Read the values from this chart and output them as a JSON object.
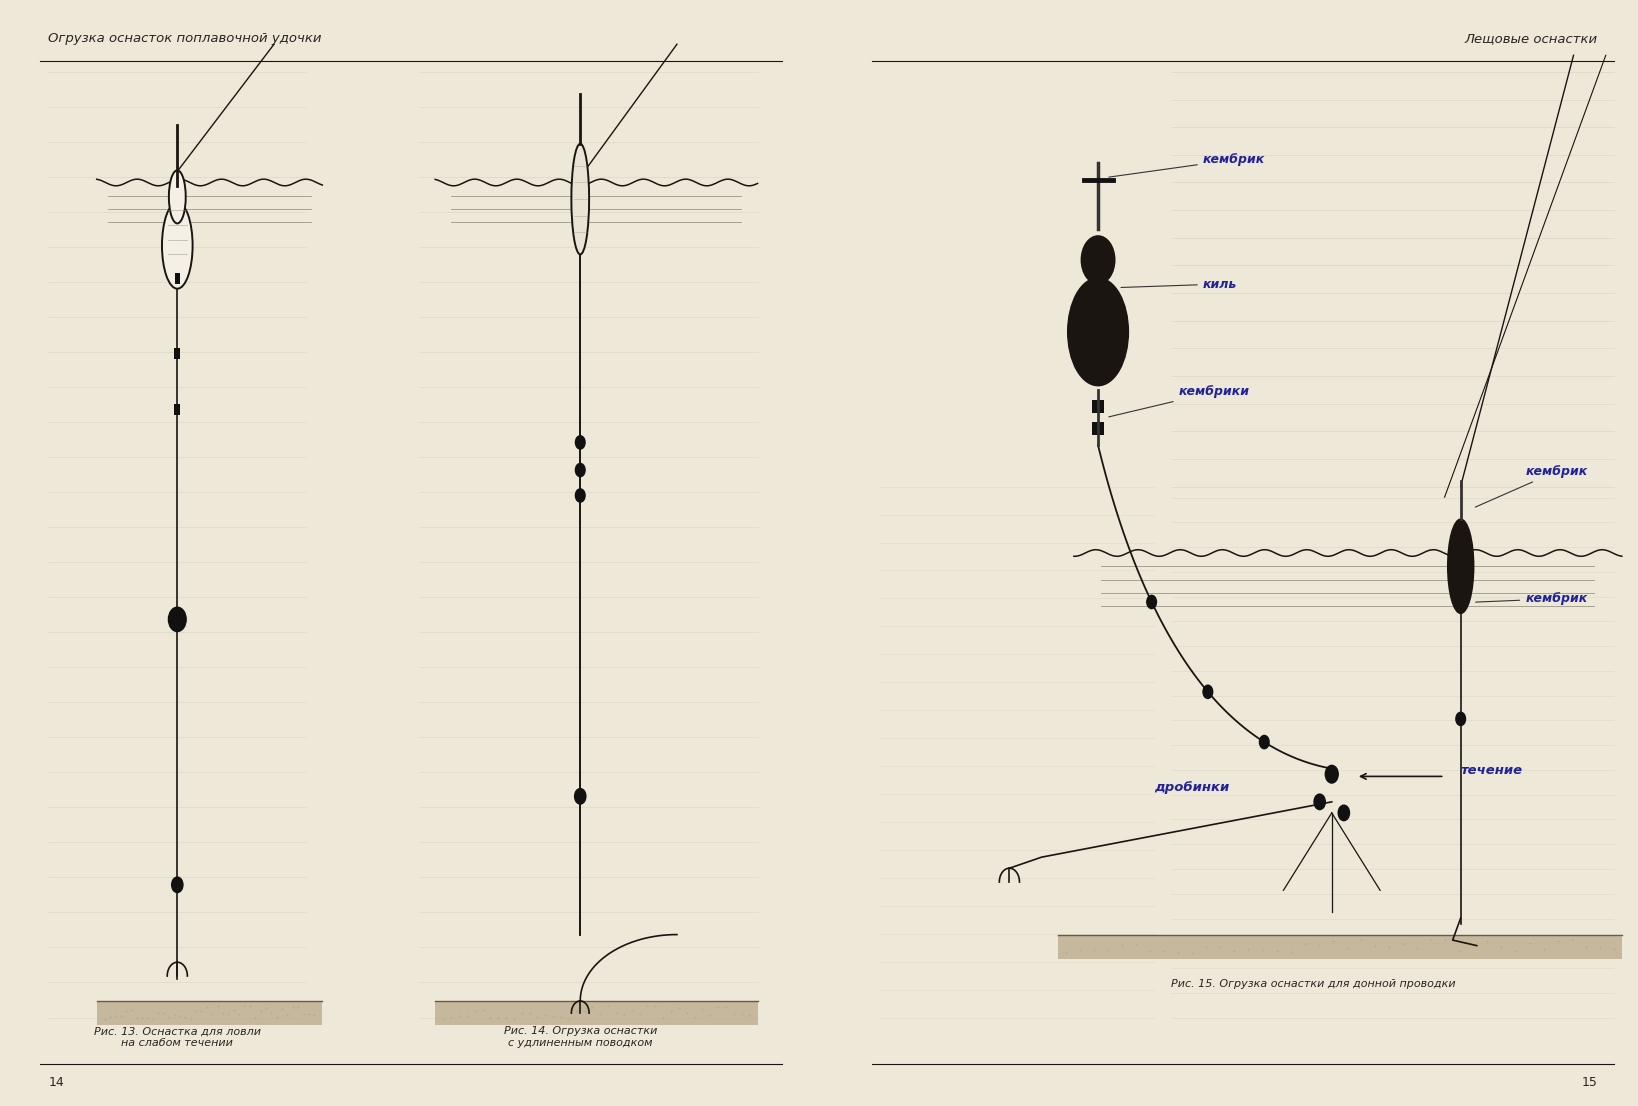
{
  "bg_color": "#ede8d8",
  "page_bg_left": "#ede8d5",
  "page_bg_right": "#eee9d6",
  "spine_color": "#7a7a6a",
  "text_color": "#2a2520",
  "line_color": "#1a1510",
  "header_left": "Огрузка оснасток поплавочной удочки",
  "header_right": "Лещовые оснастки",
  "page_num_left": "14",
  "page_num_right": "15",
  "caption13": "Рис. 13. Оснастка для ловли\nна слабом течении",
  "caption14": "Рис. 14. Огрузка оснастки\nс удлиненным поводком",
  "caption15": "Рис. 15. Огрузка оснастки для донной проводки",
  "label_kembrik1": "кембрик",
  "label_kil": "киль",
  "label_kembriki": "кембрики",
  "label_kembrik2": "кембрик",
  "label_kembrik3": "кембрик",
  "label_techenie": "течение",
  "label_drobinki": "дробинки",
  "ground_color": "#b8a888",
  "sinker_color": "#111111",
  "float_outline": "#222222",
  "text_lines_color": "#aaa090",
  "blue_label_color": "#222299"
}
